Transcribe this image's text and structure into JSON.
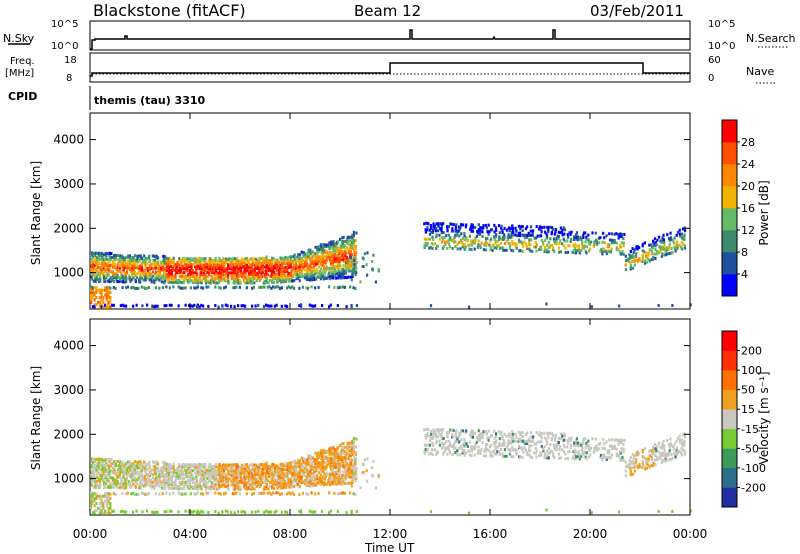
{
  "header": {
    "station": "Blackstone (fitACF)",
    "beam": "Beam 12",
    "date": "03/Feb/2011"
  },
  "panels": {
    "sky_label": "N.Sky",
    "search_label": "N.Search",
    "freq_label_1": "Freq.",
    "freq_label_2": "[MHz]",
    "nave_label": "Nave",
    "cpid_label": "CPID",
    "cpid_value": "themis (tau) 3310",
    "sky_ticks": [
      "10^5",
      "10^0"
    ],
    "search_ticks": [
      "10^5",
      "10^0"
    ],
    "freq_ticks": [
      "18",
      "8"
    ],
    "nave_ticks": [
      "60",
      "0"
    ]
  },
  "chart_data": [
    {
      "type": "heatmap",
      "name": "power",
      "ylabel": "Slant Range [km]",
      "ylim": [
        180,
        4600
      ],
      "xlim": [
        0,
        24
      ],
      "yticks": [
        "1000",
        "2000",
        "3000",
        "4000"
      ],
      "colorbar_label": "Power [dB]",
      "colorbar_ticks": [
        "4",
        "8",
        "12",
        "16",
        "20",
        "24",
        "28"
      ],
      "colorbar_colors": [
        "#0000ff",
        "#2050a0",
        "#3d8a6e",
        "#66bb66",
        "#f2b200",
        "#ff8800",
        "#ff5000",
        "#ff0000"
      ]
    },
    {
      "type": "heatmap",
      "name": "velocity",
      "ylabel": "Slant Range [km]",
      "xlabel": "Time UT",
      "ylim": [
        180,
        4600
      ],
      "xlim": [
        0,
        24
      ],
      "yticks": [
        "1000",
        "2000",
        "3000",
        "4000"
      ],
      "xticks": [
        "00:00",
        "04:00",
        "08:00",
        "12:00",
        "16:00",
        "20:00",
        "00:00"
      ],
      "colorbar_label": "Velocity [m s⁻¹]",
      "colorbar_ticks": [
        "200",
        "100",
        "50",
        "15",
        "-15",
        "-50",
        "-100",
        "-200"
      ],
      "colorbar_colors": [
        "#2030a0",
        "#2d6e8a",
        "#3d9a5a",
        "#77cc33",
        "#c8c8c0",
        "#f0a020",
        "#ff7000",
        "#ff3000",
        "#ff0000"
      ]
    }
  ]
}
